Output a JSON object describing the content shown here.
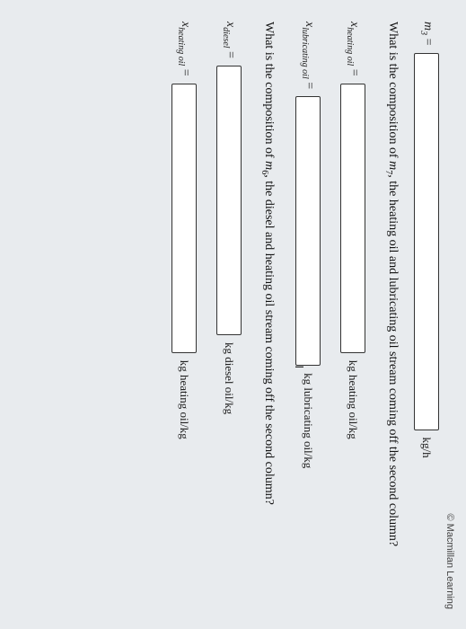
{
  "publisher": "Macmillan Learning",
  "q0": {
    "var_html": "m<sub>3</sub>",
    "unit": "kg/h"
  },
  "q1": {
    "prompt_html": "What is the composition of <span class=\"var\">m</span><sub>7</sub>, the heating oil and lubricating oil stream coming off the second column?",
    "rows": [
      {
        "var_html": "x<sub>heating oil</sub>",
        "unit": "kg heating oil/kg"
      },
      {
        "var_html": "x<sub>lubricating oil</sub>",
        "unit": "kg lubricating oil/kg"
      }
    ]
  },
  "q2": {
    "prompt_html": "What is the composition of <span class=\"var\">m</span><sub>6</sub>, the diesel and heating oil stream coming off the second column?",
    "rows": [
      {
        "var_html": "x<sub>diesel</sub>",
        "unit": "kg diesel oil/kg"
      },
      {
        "var_html": "x<sub>heating oil</sub>",
        "unit": "kg heating oil/kg"
      }
    ]
  }
}
